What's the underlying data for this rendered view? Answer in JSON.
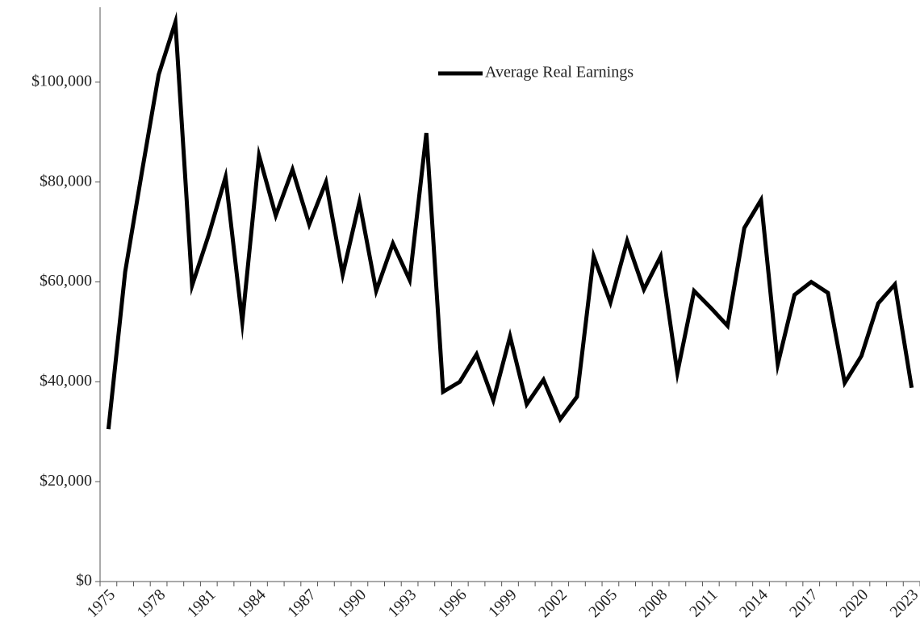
{
  "chart_data": {
    "type": "line",
    "categories": [
      "1975",
      null,
      null,
      "1978",
      null,
      null,
      "1981",
      null,
      null,
      "1984",
      null,
      null,
      "1987",
      null,
      null,
      "1990",
      null,
      null,
      "1993",
      null,
      null,
      "1996",
      null,
      null,
      "1999",
      null,
      null,
      "2002",
      null,
      null,
      "2005",
      null,
      null,
      "2008",
      null,
      null,
      "2011",
      null,
      null,
      "2014",
      null,
      null,
      "2017",
      null,
      null,
      "2020",
      null,
      null,
      "2023"
    ],
    "series": [
      {
        "name": "Average Real Earnings",
        "color": "#000000",
        "values": [
          30500,
          62000,
          82000,
          101500,
          112000,
          59300,
          69500,
          81000,
          52000,
          85300,
          73300,
          82500,
          71500,
          80000,
          61500,
          76000,
          58200,
          67700,
          60400,
          89800,
          38000,
          40000,
          45500,
          36300,
          49100,
          35500,
          40400,
          32500,
          37000,
          65100,
          55900,
          68200,
          58500,
          65100,
          41800,
          58200,
          54800,
          51200,
          70800,
          76400,
          43500,
          57400,
          60000,
          57800,
          39800,
          45200,
          55700,
          59500,
          38800
        ]
      }
    ],
    "ylim": [
      0,
      115000
    ],
    "yticks": [
      {
        "value": 0,
        "label": "$0"
      },
      {
        "value": 20000,
        "label": "$20,000"
      },
      {
        "value": 40000,
        "label": "$40,000"
      },
      {
        "value": 60000,
        "label": "$60,000"
      },
      {
        "value": 80000,
        "label": "$80,000"
      },
      {
        "value": 100000,
        "label": "$100,000"
      }
    ],
    "grid": false,
    "legend": "top"
  }
}
